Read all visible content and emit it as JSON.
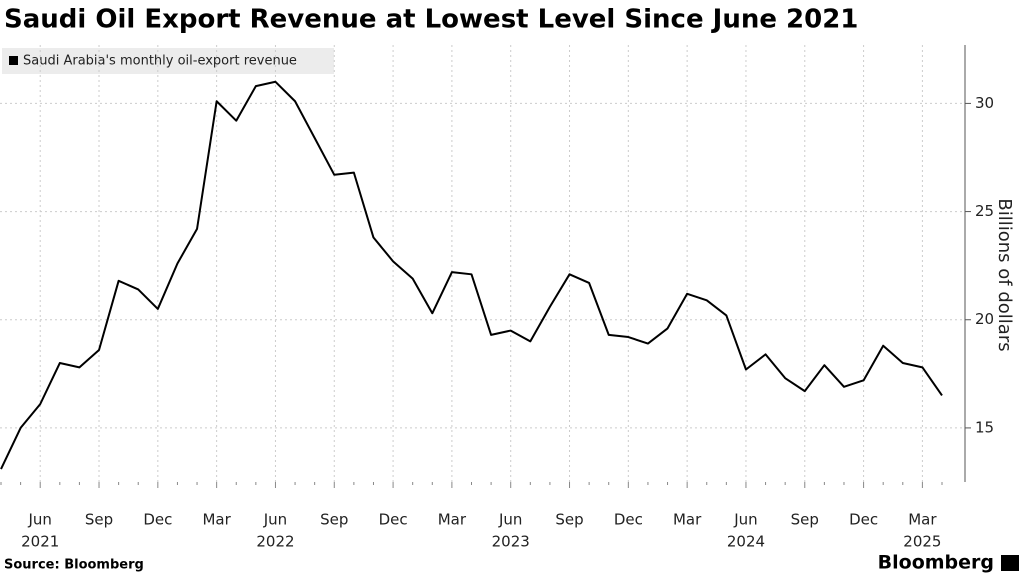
{
  "chart_data": {
    "type": "line",
    "title": "Saudi Oil Export Revenue at Lowest Level Since June 2021",
    "y_label": "Billions of dollars",
    "source": "Source: Bloomberg",
    "brand": "Bloomberg",
    "categories": [
      null,
      null,
      "Jun",
      null,
      null,
      "Sep",
      null,
      null,
      "Dec",
      null,
      null,
      "Mar",
      null,
      null,
      "Jun",
      null,
      null,
      "Sep",
      null,
      null,
      "Dec",
      null,
      null,
      "Mar",
      null,
      null,
      "Jun",
      null,
      null,
      "Sep",
      null,
      null,
      "Dec",
      null,
      null,
      "Mar",
      null,
      null,
      "Jun",
      null,
      null,
      "Sep",
      null,
      null,
      "Dec",
      null,
      null,
      "Mar",
      null
    ],
    "category_years": [
      null,
      null,
      "2021",
      null,
      null,
      null,
      null,
      null,
      null,
      null,
      null,
      null,
      null,
      null,
      "2022",
      null,
      null,
      null,
      null,
      null,
      null,
      null,
      null,
      null,
      null,
      null,
      "2023",
      null,
      null,
      null,
      null,
      null,
      null,
      null,
      null,
      null,
      null,
      null,
      "2024",
      null,
      null,
      null,
      null,
      null,
      null,
      null,
      null,
      "2025",
      null
    ],
    "series": [
      {
        "name": "Saudi Arabia's monthly oil-export revenue",
        "color": "#000000",
        "values": [
          13.1,
          15.0,
          16.1,
          18.0,
          17.8,
          18.6,
          21.8,
          21.4,
          20.5,
          22.6,
          24.2,
          30.1,
          29.2,
          30.8,
          31.0,
          30.1,
          28.4,
          26.7,
          26.8,
          23.8,
          22.7,
          21.9,
          20.3,
          22.2,
          22.1,
          19.3,
          19.5,
          19.0,
          20.6,
          22.1,
          21.7,
          19.3,
          19.2,
          18.9,
          19.6,
          21.2,
          20.9,
          20.2,
          17.7,
          18.4,
          17.3,
          16.7,
          17.9,
          16.9,
          17.2,
          18.8,
          18.0,
          17.8,
          16.5
        ]
      }
    ],
    "ylim": [
      12.5,
      32.7
    ],
    "yticks": [
      15,
      20,
      25,
      30
    ],
    "grid": true,
    "legend": "top-left"
  }
}
